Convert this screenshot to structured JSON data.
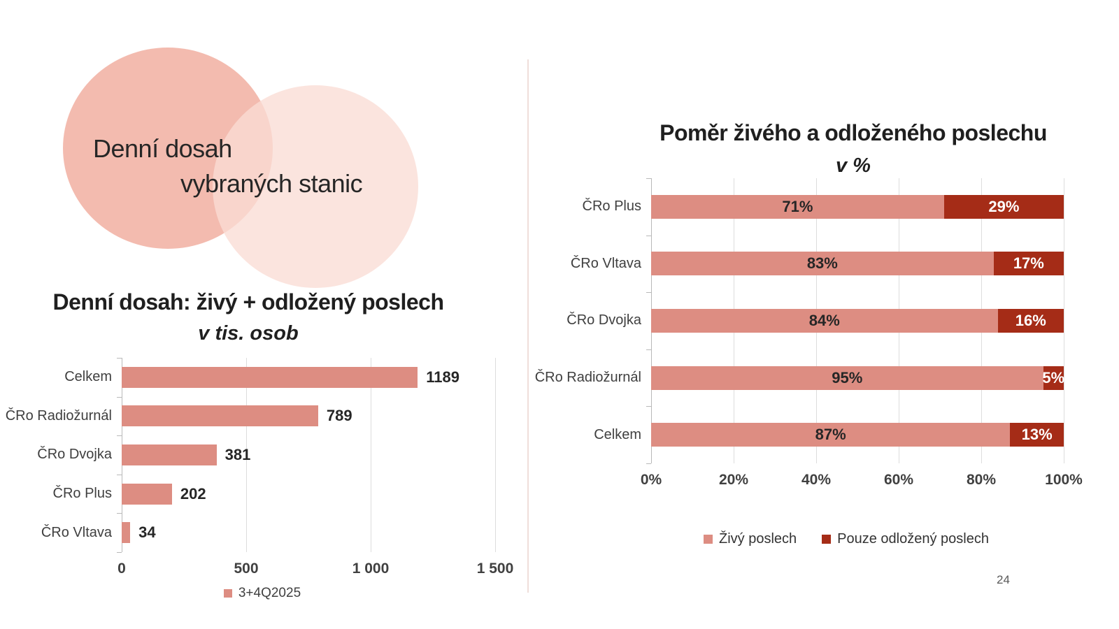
{
  "slide": {
    "hero_title_line1": "Denní dosah",
    "hero_title_line2": "vybraných stanic",
    "page_number": "24"
  },
  "colors": {
    "live": "#DD8D82",
    "deferred": "#A52C17",
    "circle_left": "#F3BBAF",
    "circle_right": "#FADDD5"
  },
  "chart_data": [
    {
      "type": "bar",
      "orientation": "horizontal",
      "title": "Denní dosah: živý + odložený poslech",
      "subtitle": "v tis. osob",
      "categories": [
        "Celkem",
        "ČRo Radiožurnál",
        "ČRo Dvojka",
        "ČRo Plus",
        "ČRo Vltava"
      ],
      "values": [
        1189,
        789,
        381,
        202,
        34
      ],
      "value_labels": [
        "1189",
        "789",
        "381",
        "202",
        "34"
      ],
      "xlim": [
        0,
        1500
      ],
      "xticks": [
        {
          "label": "0",
          "value": 0
        },
        {
          "label": "500",
          "value": 500
        },
        {
          "label": "1 000",
          "value": 1000
        },
        {
          "label": "1 500",
          "value": 1500
        }
      ],
      "grid": true,
      "bar_color": "#DD8D82",
      "legend": [
        {
          "label": "3+4Q2025",
          "color": "#DD8D82"
        }
      ],
      "legend_position": "bottom"
    },
    {
      "type": "bar",
      "orientation": "horizontal",
      "stacked": true,
      "title": "Poměr živého a odloženého poslechu",
      "subtitle": "v %",
      "categories": [
        "ČRo Plus",
        "ČRo Vltava",
        "ČRo Dvojka",
        "ČRo Radiožurnál",
        "Celkem"
      ],
      "series": [
        {
          "name": "Živý poslech",
          "color": "#DD8D82",
          "label_color": "#262626",
          "values": [
            71,
            83,
            84,
            95,
            87
          ],
          "value_labels": [
            "71%",
            "83%",
            "84%",
            "95%",
            "87%"
          ]
        },
        {
          "name": "Pouze odložený poslech",
          "color": "#A52C17",
          "label_color": "#FFFFFF",
          "values": [
            29,
            17,
            16,
            5,
            13
          ],
          "value_labels": [
            "29%",
            "17%",
            "16%",
            "5%",
            "13%"
          ]
        }
      ],
      "xlim": [
        0,
        100
      ],
      "xticks": [
        {
          "label": "0%",
          "value": 0
        },
        {
          "label": "20%",
          "value": 20
        },
        {
          "label": "40%",
          "value": 40
        },
        {
          "label": "60%",
          "value": 60
        },
        {
          "label": "80%",
          "value": 80
        },
        {
          "label": "100%",
          "value": 100
        }
      ],
      "grid": true,
      "legend_position": "bottom"
    }
  ]
}
